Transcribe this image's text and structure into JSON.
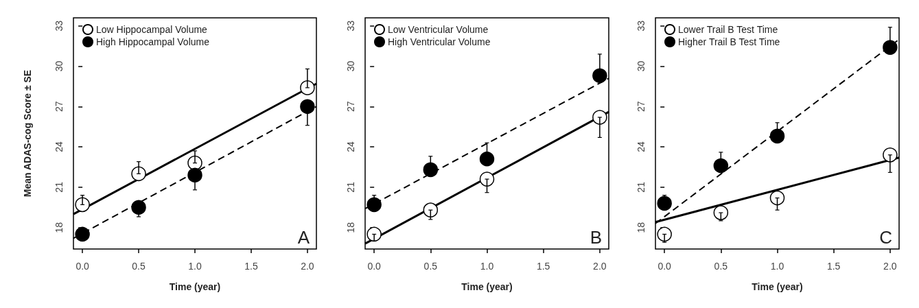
{
  "chart_data": [
    {
      "type": "scatter",
      "ylabel": "Mean ADAS-cog Score ± SE",
      "xlabel": "Time (year)",
      "annotations": [
        "A"
      ],
      "legend": "top left",
      "grid": false,
      "xlim": [
        -0.08,
        2.08
      ],
      "ylim": [
        16.4,
        33.6
      ],
      "xticks": [
        {
          "value": 0,
          "label": "0.0"
        },
        {
          "value": 0.5,
          "label": "0.5"
        },
        {
          "value": 1,
          "label": "1.0"
        },
        {
          "value": 1.5,
          "label": "1.5"
        },
        {
          "value": 2,
          "label": "2.0"
        }
      ],
      "yticks": [
        18,
        21,
        24,
        27,
        30,
        33
      ],
      "series": [
        {
          "name": "Low Hippocampal Volume",
          "color": "#000000",
          "marker": "circle",
          "x": [
            0,
            0.5,
            1,
            2
          ],
          "values": [
            19.7,
            22.0,
            22.8,
            28.4
          ],
          "errors": [
            [
              19.7,
              20.4
            ],
            [
              22.0,
              22.9
            ],
            [
              22.8,
              23.7
            ],
            [
              28.4,
              29.8
            ]
          ]
        },
        {
          "name": "High Hippocampal Volume",
          "color": "#000000",
          "marker": "circle",
          "x": [
            0,
            0.5,
            1,
            2
          ],
          "values": [
            17.5,
            19.5,
            21.9,
            27.0
          ],
          "errors": [
            [
              17.0,
              17.5
            ],
            [
              18.8,
              19.5
            ],
            [
              20.8,
              21.9
            ],
            [
              25.6,
              27.0
            ]
          ]
        },
        {
          "type": "line",
          "color": "#000000",
          "marker": "none",
          "line_style": "solid",
          "x": [
            -0.08,
            2.08
          ],
          "values": [
            19.0,
            28.7
          ]
        },
        {
          "type": "line",
          "color": "#000000",
          "marker": "none",
          "line_style": "dashed",
          "x": [
            -0.08,
            2.08
          ],
          "values": [
            17.2,
            27.0
          ]
        }
      ]
    },
    {
      "type": "scatter",
      "xlabel": "Time (year)",
      "annotations": [
        "B"
      ],
      "legend": "top left",
      "grid": false,
      "xlim": [
        -0.08,
        2.08
      ],
      "ylim": [
        16.4,
        33.6
      ],
      "xticks": [
        {
          "value": 0,
          "label": "0.0"
        },
        {
          "value": 0.5,
          "label": "0.5"
        },
        {
          "value": 1,
          "label": "1.0"
        },
        {
          "value": 1.5,
          "label": "1.5"
        },
        {
          "value": 2,
          "label": "2.0"
        }
      ],
      "yticks": [
        18,
        21,
        24,
        27,
        30,
        33
      ],
      "series": [
        {
          "name": "Low Ventricular Volume",
          "color": "#000000",
          "marker": "circle",
          "x": [
            0,
            0.5,
            1,
            2
          ],
          "values": [
            17.5,
            19.3,
            21.6,
            26.2
          ],
          "errors": [
            [
              17.0,
              17.5
            ],
            [
              18.6,
              19.3
            ],
            [
              20.6,
              21.6
            ],
            [
              24.7,
              26.2
            ]
          ]
        },
        {
          "name": "High Ventricular Volume",
          "color": "#000000",
          "marker": "circle",
          "x": [
            0,
            0.5,
            1,
            2
          ],
          "values": [
            19.7,
            22.3,
            23.1,
            29.3
          ],
          "errors": [
            [
              19.7,
              20.4
            ],
            [
              22.3,
              23.3
            ],
            [
              23.1,
              24.3
            ],
            [
              29.3,
              30.9
            ]
          ]
        },
        {
          "type": "line",
          "color": "#000000",
          "marker": "none",
          "line_style": "solid",
          "x": [
            -0.08,
            2.08
          ],
          "values": [
            16.8,
            26.6
          ]
        },
        {
          "type": "line",
          "color": "#000000",
          "marker": "none",
          "line_style": "dashed",
          "x": [
            -0.08,
            2.08
          ],
          "values": [
            19.4,
            29.1
          ]
        }
      ]
    },
    {
      "type": "scatter",
      "xlabel": "Time (year)",
      "annotations": [
        "C"
      ],
      "legend": "top left",
      "grid": false,
      "xlim": [
        -0.08,
        2.08
      ],
      "ylim": [
        16.4,
        33.6
      ],
      "xticks": [
        {
          "value": 0,
          "label": "0.0"
        },
        {
          "value": 0.5,
          "label": "0.5"
        },
        {
          "value": 1,
          "label": "1.0"
        },
        {
          "value": 1.5,
          "label": "1.5"
        },
        {
          "value": 2,
          "label": "2.0"
        }
      ],
      "yticks": [
        18,
        21,
        24,
        27,
        30,
        33
      ],
      "series": [
        {
          "name": "Lower Trail B Test Time",
          "color": "#000000",
          "marker": "circle",
          "x": [
            0,
            0.5,
            1,
            2
          ],
          "values": [
            17.5,
            19.1,
            20.2,
            23.4
          ],
          "errors": [
            [
              16.9,
              17.5
            ],
            [
              18.5,
              19.1
            ],
            [
              19.3,
              20.2
            ],
            [
              22.1,
              23.4
            ]
          ]
        },
        {
          "name": "Higher Trail B Test Time",
          "color": "#000000",
          "marker": "circle",
          "x": [
            0,
            0.5,
            1,
            2
          ],
          "values": [
            19.8,
            22.6,
            24.8,
            31.4
          ],
          "errors": [
            [
              19.8,
              20.4
            ],
            [
              22.6,
              23.6
            ],
            [
              24.8,
              25.8
            ],
            [
              31.4,
              32.9
            ]
          ]
        },
        {
          "type": "line",
          "color": "#000000",
          "marker": "none",
          "line_style": "solid",
          "x": [
            -0.08,
            2.08
          ],
          "values": [
            18.4,
            23.2
          ]
        },
        {
          "type": "line",
          "color": "#000000",
          "marker": "none",
          "line_style": "dashed",
          "x": [
            -0.08,
            2.08
          ],
          "values": [
            18.3,
            32.0
          ]
        }
      ]
    }
  ]
}
